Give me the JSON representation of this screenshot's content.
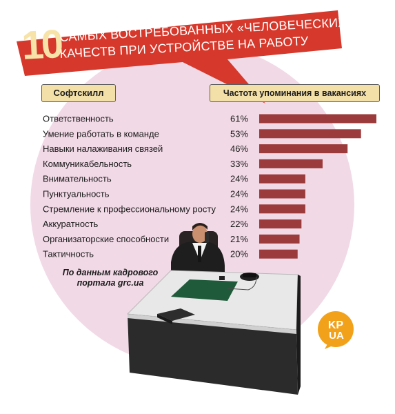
{
  "title": {
    "number": "10",
    "line1": "САМЫХ ВОСТРЕБОВАННЫХ «ЧЕЛОВЕЧЕСКИХ»",
    "line2": "КАЧЕСТВ ПРИ УСТРОЙСТВЕ НА РАБОТУ"
  },
  "headers": {
    "left": "Софтскилл",
    "right": "Частота упоминания в вакансиях"
  },
  "source_note": {
    "line1": "По данным кадрового",
    "line2": "портала grc.ua"
  },
  "logo": {
    "top": "KP",
    "bottom": "UA"
  },
  "colors": {
    "banner": "#d6382b",
    "banner_number": "#f7e3a8",
    "bar": "#9c3b3b",
    "badge": "#f3dfa8",
    "circle": "#f1d9e6",
    "logo": "#f1a21a"
  },
  "chart_data": {
    "type": "bar",
    "orientation": "horizontal",
    "unit": "%",
    "categories": [
      "Ответственность",
      "Умение работать в команде",
      "Навыки налаживания связей",
      "Коммуникабельность",
      "Внимательность",
      "Пунктуальность",
      "Стремление к профессиональному росту",
      "Аккуратность",
      "Организаторские способности",
      "Тактичность"
    ],
    "values": [
      61,
      53,
      46,
      33,
      24,
      24,
      24,
      22,
      21,
      20
    ],
    "value_labels": [
      "61%",
      "53%",
      "46%",
      "33%",
      "24%",
      "24%",
      "24%",
      "22%",
      "21%",
      "20%"
    ],
    "xlim": [
      0,
      61
    ],
    "grid": false,
    "legend": "none"
  }
}
